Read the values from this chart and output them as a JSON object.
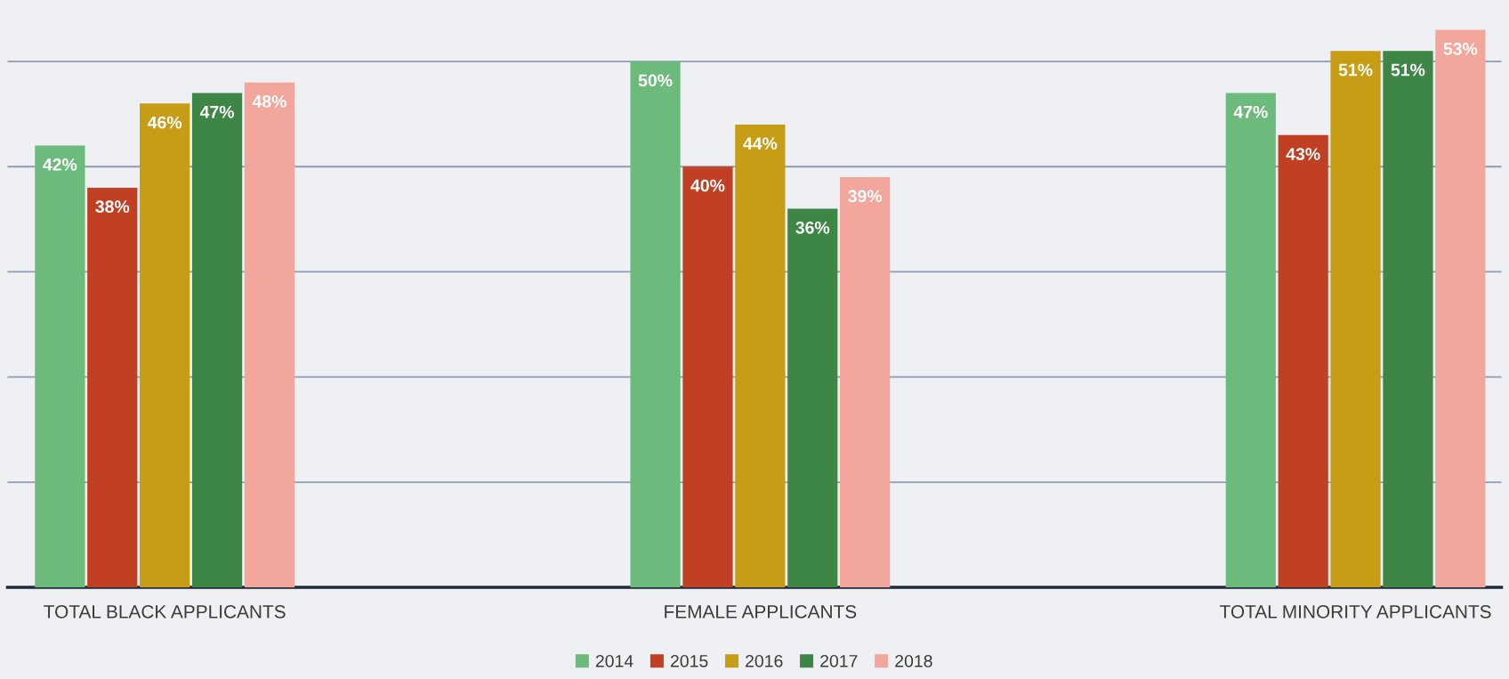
{
  "chart_data": {
    "type": "bar",
    "categories": [
      "TOTAL BLACK APPLICANTS",
      "FEMALE APPLICANTS",
      "TOTAL MINORITY APPLICANTS"
    ],
    "series": [
      {
        "name": "2014",
        "color": "#6dbb7c",
        "values": [
          42,
          50,
          47
        ],
        "value_labels": [
          "42%",
          "50%",
          "47%"
        ]
      },
      {
        "name": "2015",
        "color": "#c13f22",
        "values": [
          38,
          40,
          43
        ],
        "value_labels": [
          "38%",
          "40%",
          "43%"
        ]
      },
      {
        "name": "2016",
        "color": "#c79d16",
        "values": [
          46,
          44,
          51
        ],
        "value_labels": [
          "46%",
          "44%",
          "51%"
        ]
      },
      {
        "name": "2017",
        "color": "#3e8646",
        "values": [
          47,
          36,
          51
        ],
        "value_labels": [
          "47%",
          "36%",
          "51%"
        ]
      },
      {
        "name": "2018",
        "color": "#f3a69b",
        "values": [
          48,
          39,
          53
        ],
        "value_labels": [
          "48%",
          "39%",
          "53%"
        ]
      }
    ],
    "tick_labels": "x",
    "grid": "y",
    "legend": "bottom"
  }
}
